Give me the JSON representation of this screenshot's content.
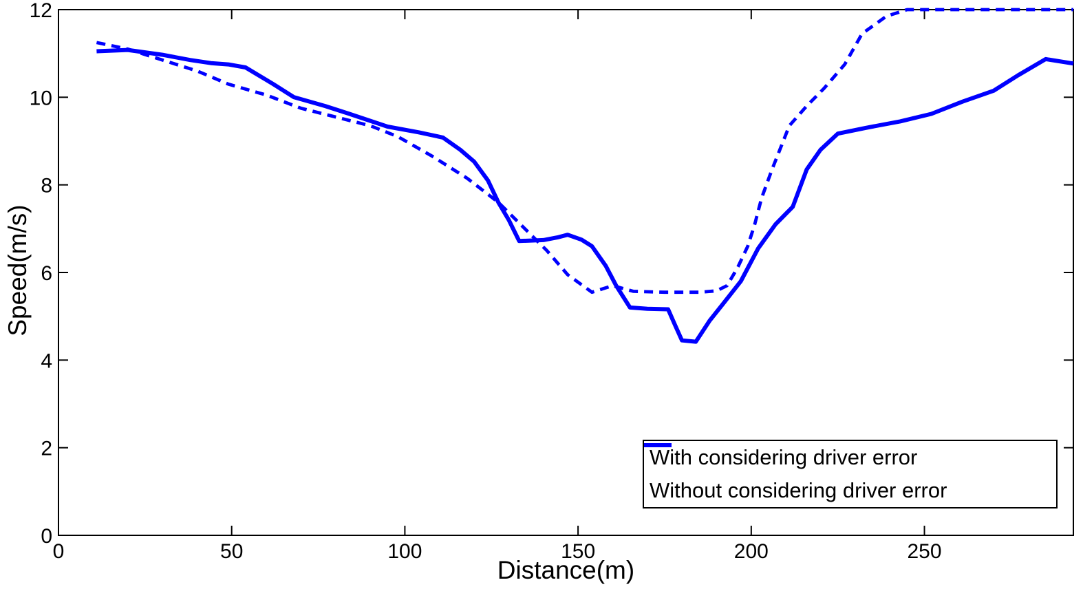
{
  "chart_data": {
    "type": "line",
    "title": "",
    "xlabel": "Distance(m)",
    "ylabel": "Speed(m/s)",
    "xlim": [
      0,
      293
    ],
    "ylim": [
      0,
      12
    ],
    "xticks": [
      0,
      50,
      100,
      150,
      200,
      250
    ],
    "yticks": [
      0,
      2,
      4,
      6,
      8,
      10,
      12
    ],
    "grid": false,
    "box": true,
    "background": "#ffffff",
    "axis_color": "#000000",
    "line_color": "#0000FF",
    "legend": {
      "position": "bottom-right"
    },
    "series": [
      {
        "name": "With considering driver error",
        "style": "dashed",
        "x": [
          11,
          20,
          30,
          40,
          49,
          60,
          70,
          80,
          90,
          98,
          108,
          118,
          127,
          134,
          141,
          147,
          154,
          160,
          166,
          175,
          185,
          190,
          193,
          196,
          199,
          201,
          203,
          206,
          211,
          216,
          221,
          227,
          232,
          239,
          245,
          260,
          293
        ],
        "y": [
          11.25,
          11.1,
          10.85,
          10.6,
          10.3,
          10.05,
          9.75,
          9.55,
          9.35,
          9.1,
          8.65,
          8.15,
          7.6,
          7.05,
          6.5,
          5.95,
          5.55,
          5.7,
          5.57,
          5.55,
          5.55,
          5.58,
          5.7,
          6.1,
          6.6,
          7.1,
          7.7,
          8.35,
          9.35,
          9.8,
          10.2,
          10.75,
          11.45,
          11.85,
          12.0,
          12.0,
          12.0
        ]
      },
      {
        "name": "Without considering driver error",
        "style": "solid",
        "x": [
          11,
          20,
          30,
          38,
          44,
          49,
          54,
          62,
          68,
          77,
          84,
          95,
          104,
          111,
          116,
          120,
          124,
          127,
          130,
          133,
          137,
          140,
          144,
          147,
          151,
          154,
          158,
          161,
          165,
          170,
          176,
          178,
          180,
          184,
          188,
          192,
          197,
          202,
          207,
          212,
          216,
          220,
          225,
          233,
          243,
          252,
          261,
          270,
          277,
          285,
          293
        ],
        "y": [
          11.05,
          11.08,
          10.97,
          10.85,
          10.78,
          10.75,
          10.68,
          10.3,
          10.0,
          9.8,
          9.62,
          9.33,
          9.2,
          9.08,
          8.8,
          8.53,
          8.1,
          7.6,
          7.2,
          6.72,
          6.73,
          6.74,
          6.8,
          6.86,
          6.75,
          6.6,
          6.15,
          5.7,
          5.2,
          5.17,
          5.16,
          4.8,
          4.45,
          4.42,
          4.9,
          5.3,
          5.8,
          6.55,
          7.1,
          7.5,
          8.35,
          8.8,
          9.17,
          9.3,
          9.45,
          9.62,
          9.9,
          10.15,
          10.5,
          10.87,
          10.77
        ]
      }
    ]
  }
}
